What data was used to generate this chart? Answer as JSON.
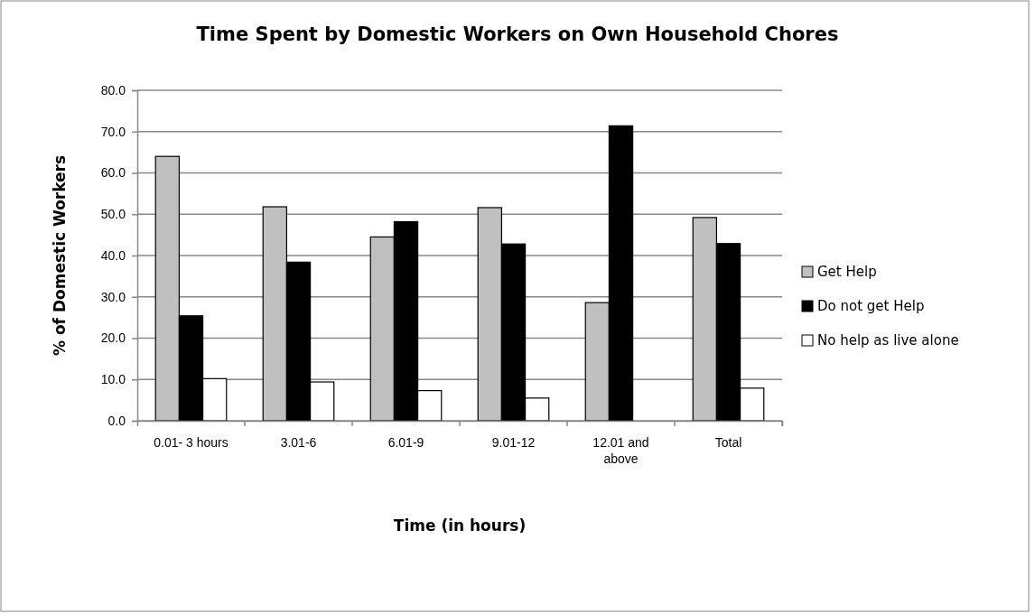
{
  "chart_data": {
    "type": "bar",
    "title": "Time Spent by Domestic Workers on Own Household Chores",
    "xlabel": "Time (in hours)",
    "ylabel": "% of Domestic Workers",
    "categories": [
      "0.01- 3 hours",
      "3.01-6",
      "6.01-9",
      "9.01-12",
      "12.01 and above",
      "Total"
    ],
    "series": [
      {
        "name": "Get Help",
        "color": "#c0c0c0",
        "values": [
          64.0,
          51.8,
          44.5,
          51.6,
          28.6,
          49.2
        ]
      },
      {
        "name": "Do not get Help",
        "color": "#000000",
        "values": [
          25.4,
          38.4,
          48.2,
          42.8,
          71.4,
          42.9
        ]
      },
      {
        "name": "No help as live alone",
        "color": "#ffffff",
        "values": [
          10.2,
          9.4,
          7.3,
          5.5,
          0,
          7.9
        ]
      }
    ],
    "ylim": [
      0,
      80
    ],
    "yticks": [
      {
        "value": 0,
        "label": "0.0"
      },
      {
        "value": 10,
        "label": "10.0"
      },
      {
        "value": 20,
        "label": "20.0"
      },
      {
        "value": 30,
        "label": "30.0"
      },
      {
        "value": 40,
        "label": "40.0"
      },
      {
        "value": 50,
        "label": "50.0"
      },
      {
        "value": 60,
        "label": "60.0"
      },
      {
        "value": 70,
        "label": "70.0"
      },
      {
        "value": 80,
        "label": "80.0"
      }
    ],
    "grid": "y",
    "legend": "right"
  }
}
